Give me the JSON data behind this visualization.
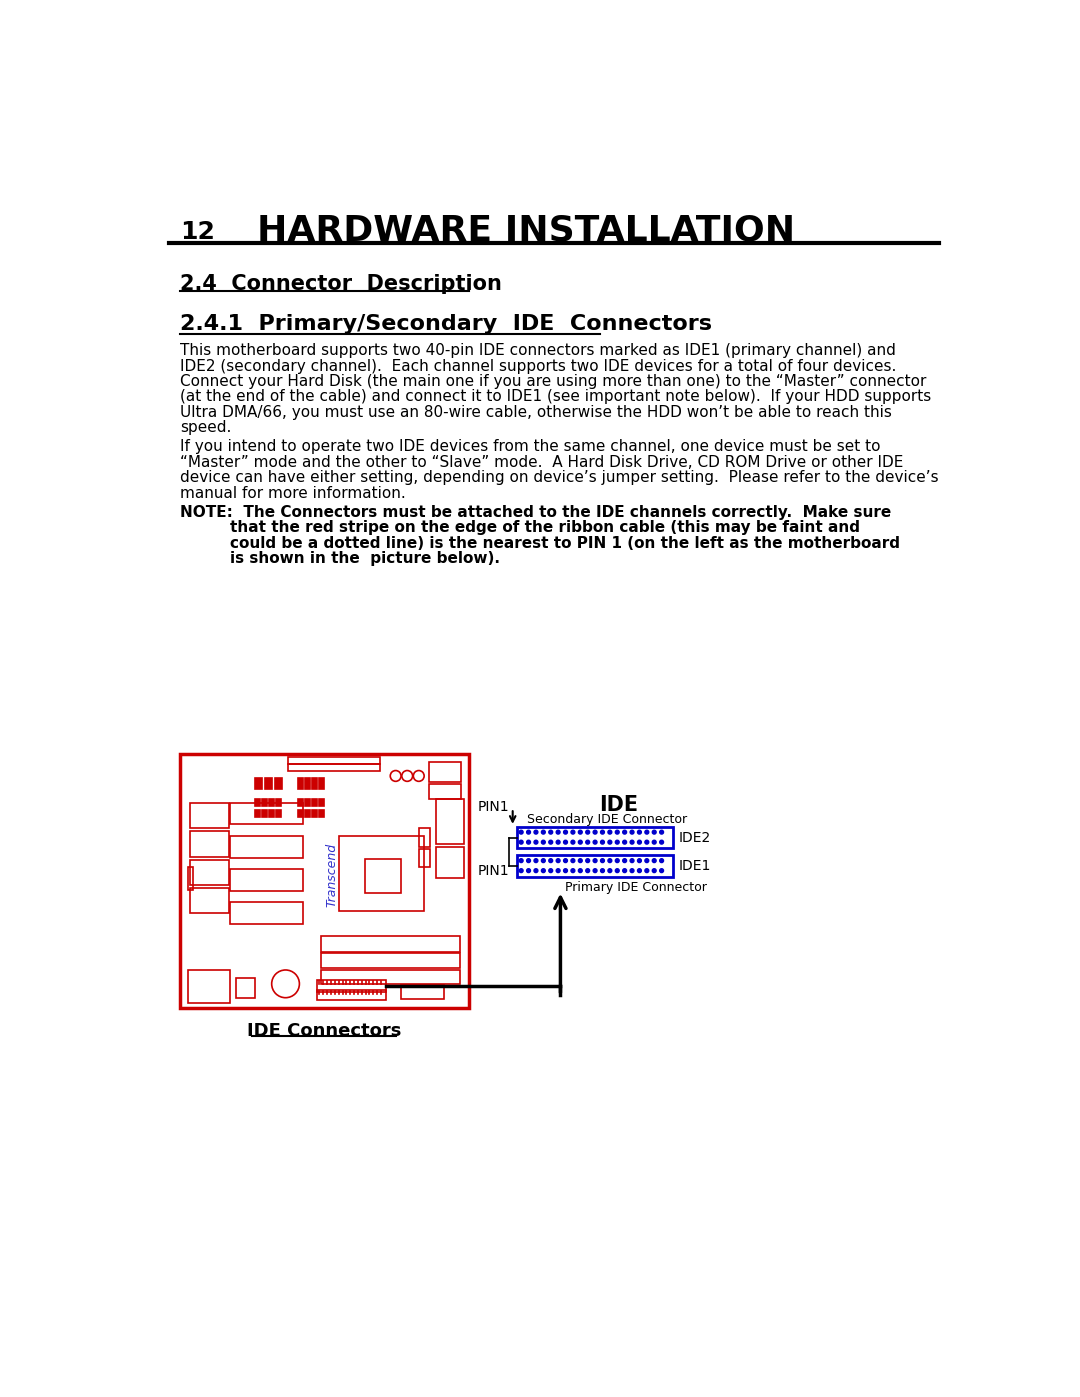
{
  "page_number": "12",
  "main_title": "HARDWARE INSTALLATION",
  "section_title": "2.4  Connector  Description",
  "subsection_title": "2.4.1  Primary/Secondary  IDE  Connectors",
  "body1_lines": [
    "This motherboard supports two 40-pin IDE connectors marked as IDE1 (primary channel) and",
    "IDE2 (secondary channel).  Each channel supports two IDE devices for a total of four devices.",
    "Connect your Hard Disk (the main one if you are using more than one) to the “Master” connector",
    "(at the end of the cable) and connect it to IDE1 (see important note below).  If your HDD supports",
    "Ultra DMA/66, you must use an 80-wire cable, otherwise the HDD won’t be able to reach this",
    "speed."
  ],
  "body2_lines": [
    "If you intend to operate two IDE devices from the same channel, one device must be set to",
    "“Master” mode and the other to “Slave” mode.  A Hard Disk Drive, CD ROM Drive or other IDE",
    "device can have either setting, depending on device’s jumper setting.  Please refer to the device’s",
    "manual for more information."
  ],
  "note_lines": [
    [
      "NOTE:  The Connectors must be attached to the IDE channels correctly.  Make sure",
      55
    ],
    [
      "that the red stripe on the edge of the ribbon cable (this may be faint and",
      120
    ],
    [
      "could be a dotted line) is the nearest to PIN 1 (on the left as the motherboard",
      120
    ],
    [
      "is shown in the  picture below).",
      120
    ]
  ],
  "caption": "IDE Connectors",
  "ide_title": "IDE",
  "secondary_label": "Secondary IDE Connector",
  "primary_label": "Primary IDE Connector",
  "ide2_label": "IDE2",
  "ide1_label": "IDE1",
  "pin1_top": "PIN1",
  "pin1_bottom": "PIN1",
  "bg_color": "#ffffff",
  "text_color": "#000000",
  "red_color": "#cc0000",
  "blue_color": "#0000cc",
  "transcend_color": "#3333cc"
}
